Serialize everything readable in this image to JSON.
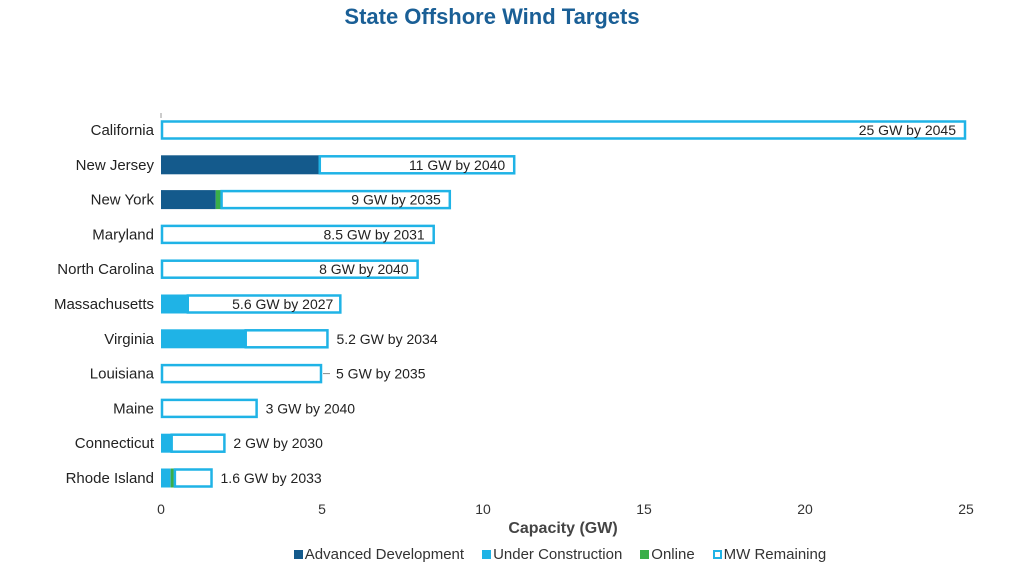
{
  "chart_data": {
    "type": "bar",
    "orientation": "horizontal",
    "stacked": true,
    "title": "State Offshore Wind Targets",
    "xlabel": "Capacity (GW)",
    "xlim": [
      0,
      25
    ],
    "xticks": [
      "0",
      "5",
      "10",
      "15",
      "20",
      "25"
    ],
    "grid": false,
    "legend_position": "bottom",
    "categories": [
      "California",
      "New Jersey",
      "New York",
      "Maryland",
      "North Carolina",
      "Massachusetts",
      "Virginia",
      "Louisiana",
      "Maine",
      "Connecticut",
      "Rhode Island"
    ],
    "series": [
      {
        "name": "Advanced Development",
        "color": "#145a8c",
        "values": [
          0,
          4.9,
          1.7,
          0,
          0,
          0,
          0,
          0,
          0,
          0,
          0
        ]
      },
      {
        "name": "Under Construction",
        "color": "#1fb3e6",
        "values": [
          0,
          0,
          0,
          0,
          0,
          0.8,
          2.6,
          0,
          0,
          0.3,
          0.3
        ]
      },
      {
        "name": "Online",
        "color": "#3aae49",
        "values": [
          0,
          0,
          0.15,
          0,
          0,
          0,
          0,
          0,
          0,
          0,
          0.1
        ]
      },
      {
        "name": "MW Remaining",
        "color": "#1fb3e6",
        "values": [
          25,
          6.1,
          7.15,
          8.5,
          8,
          4.8,
          2.6,
          5,
          3,
          1.7,
          1.2
        ]
      }
    ],
    "targets": [
      25,
      11,
      9,
      8.5,
      8,
      5.6,
      5.2,
      5,
      3,
      2,
      1.6
    ],
    "data_labels": [
      "25 GW by 2045",
      "11 GW by 2040",
      "9 GW by 2035",
      "8.5 GW by 2031",
      "8 GW by 2040",
      "5.6 GW by 2027",
      "5.2 GW by 2034",
      "5 GW by 2035",
      "3 GW by 2040",
      "2 GW by 2030",
      "1.6 GW by 2033"
    ]
  }
}
